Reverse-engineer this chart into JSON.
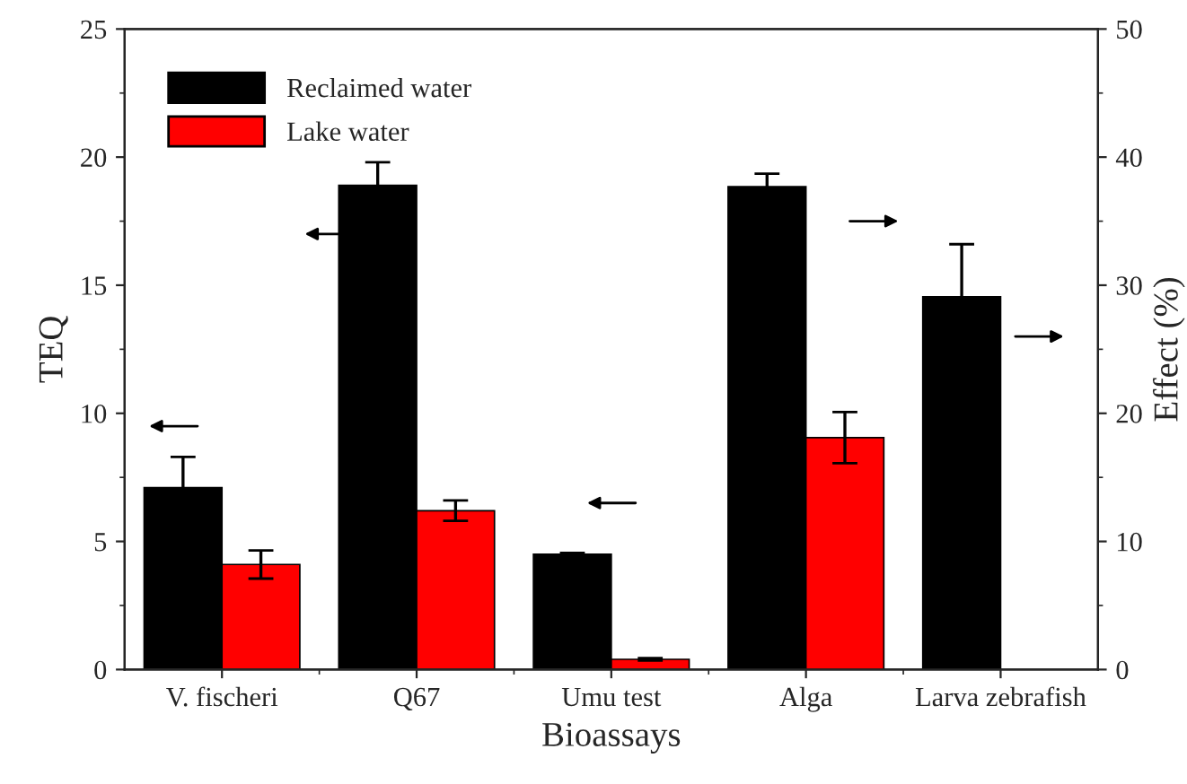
{
  "chart_data": {
    "type": "bar",
    "xlabel": "Bioassays",
    "ylabel": "TEQ",
    "y2label": "Effect (%)",
    "categories": [
      "V. fischeri",
      "Q67",
      "Umu test",
      "Alga",
      "Larva zebrafish"
    ],
    "series": [
      {
        "name": "Reclaimed water",
        "color": "#000000",
        "values": [
          7.1,
          18.9,
          4.5,
          null,
          null
        ],
        "errors": [
          1.2,
          0.9,
          0.05,
          null,
          null
        ]
      },
      {
        "name": "Lake water",
        "color": "#ff0000",
        "values": [
          4.1,
          6.2,
          0.4,
          null,
          null
        ],
        "errors": [
          0.55,
          0.4,
          0.05,
          null,
          null
        ]
      },
      {
        "color": "#000000",
        "axis": "y2",
        "values": [
          null,
          null,
          null,
          37.7,
          29.1
        ],
        "errors": [
          null,
          null,
          null,
          1.0,
          4.1
        ]
      },
      {
        "color": "#ff0000",
        "axis": "y2",
        "values": [
          null,
          null,
          null,
          18.1,
          null
        ],
        "errors": [
          null,
          null,
          null,
          2.0,
          null
        ]
      }
    ],
    "ylim": [
      0,
      25
    ],
    "yticks": [
      0,
      5,
      10,
      15,
      20,
      25
    ],
    "y2lim": [
      0,
      50
    ],
    "y2ticks": [
      0,
      10,
      20,
      30,
      40,
      50
    ],
    "legend": "top left",
    "grid": false
  }
}
